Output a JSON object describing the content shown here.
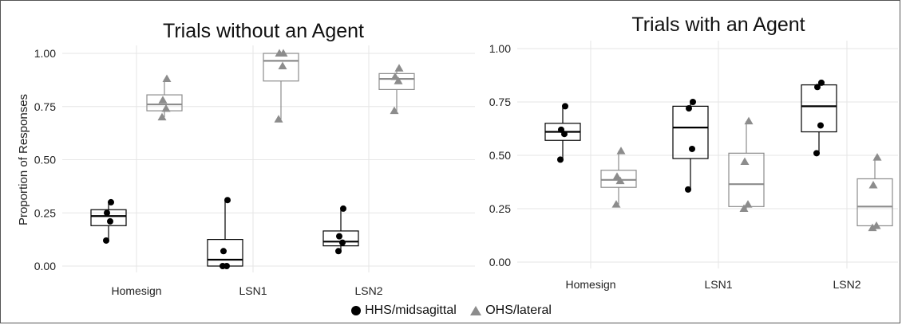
{
  "chart_data": [
    {
      "type": "box",
      "title": "Trials without an Agent",
      "ylabel": "Proportion of Responses",
      "ylim": [
        0,
        1
      ],
      "yticks": [
        "0.00",
        "0.25",
        "0.50",
        "0.75",
        "1.00"
      ],
      "categories": [
        "Homesign",
        "LSN1",
        "LSN2"
      ],
      "series": [
        {
          "name": "HHS/midsagittal",
          "color": "#000000",
          "marker": "circle",
          "boxes": [
            {
              "q1": 0.19,
              "median": 0.235,
              "q3": 0.265,
              "min": 0.12,
              "max": 0.3,
              "points": [
                0.12,
                0.21,
                0.25,
                0.3
              ]
            },
            {
              "q1": 0.0,
              "median": 0.03,
              "q3": 0.125,
              "min": 0.0,
              "max": 0.31,
              "points": [
                0.0,
                0.0,
                0.07,
                0.31
              ]
            },
            {
              "q1": 0.095,
              "median": 0.115,
              "q3": 0.165,
              "min": 0.07,
              "max": 0.27,
              "points": [
                0.07,
                0.11,
                0.14,
                0.27
              ]
            }
          ]
        },
        {
          "name": "OHS/lateral",
          "color": "#8c8c8c",
          "marker": "triangle",
          "boxes": [
            {
              "q1": 0.73,
              "median": 0.76,
              "q3": 0.805,
              "min": 0.7,
              "max": 0.88,
              "points": [
                0.7,
                0.74,
                0.78,
                0.88
              ]
            },
            {
              "q1": 0.87,
              "median": 0.965,
              "q3": 1.0,
              "min": 0.69,
              "max": 1.0,
              "points": [
                0.69,
                0.94,
                1.0,
                1.0
              ]
            },
            {
              "q1": 0.83,
              "median": 0.88,
              "q3": 0.905,
              "min": 0.73,
              "max": 0.93,
              "points": [
                0.73,
                0.87,
                0.89,
                0.93
              ]
            }
          ]
        }
      ]
    },
    {
      "type": "box",
      "title": "Trials with an Agent",
      "ylim": [
        0,
        1
      ],
      "yticks": [
        "0.00",
        "0.25",
        "0.50",
        "0.75",
        "1.00"
      ],
      "categories": [
        "Homesign",
        "LSN1",
        "LSN2"
      ],
      "series": [
        {
          "name": "HHS/midsagittal",
          "color": "#000000",
          "marker": "circle",
          "boxes": [
            {
              "q1": 0.57,
              "median": 0.61,
              "q3": 0.65,
              "min": 0.48,
              "max": 0.73,
              "points": [
                0.48,
                0.6,
                0.62,
                0.73
              ]
            },
            {
              "q1": 0.485,
              "median": 0.63,
              "q3": 0.73,
              "min": 0.34,
              "max": 0.75,
              "points": [
                0.34,
                0.53,
                0.72,
                0.75
              ]
            },
            {
              "q1": 0.61,
              "median": 0.73,
              "q3": 0.83,
              "min": 0.51,
              "max": 0.84,
              "points": [
                0.51,
                0.64,
                0.82,
                0.84
              ]
            }
          ]
        },
        {
          "name": "OHS/lateral",
          "color": "#8c8c8c",
          "marker": "triangle",
          "boxes": [
            {
              "q1": 0.35,
              "median": 0.385,
              "q3": 0.43,
              "min": 0.27,
              "max": 0.52,
              "points": [
                0.27,
                0.38,
                0.4,
                0.52
              ]
            },
            {
              "q1": 0.26,
              "median": 0.365,
              "q3": 0.51,
              "min": 0.25,
              "max": 0.66,
              "points": [
                0.25,
                0.27,
                0.47,
                0.66
              ]
            },
            {
              "q1": 0.17,
              "median": 0.26,
              "q3": 0.39,
              "min": 0.16,
              "max": 0.49,
              "points": [
                0.16,
                0.17,
                0.36,
                0.49
              ]
            }
          ]
        }
      ]
    }
  ],
  "legend": {
    "position": "bottom-center",
    "items": [
      {
        "label": "HHS/midsagittal",
        "marker": "circle",
        "color": "#000000"
      },
      {
        "label": "OHS/lateral",
        "marker": "triangle",
        "color": "#8c8c8c"
      }
    ]
  }
}
